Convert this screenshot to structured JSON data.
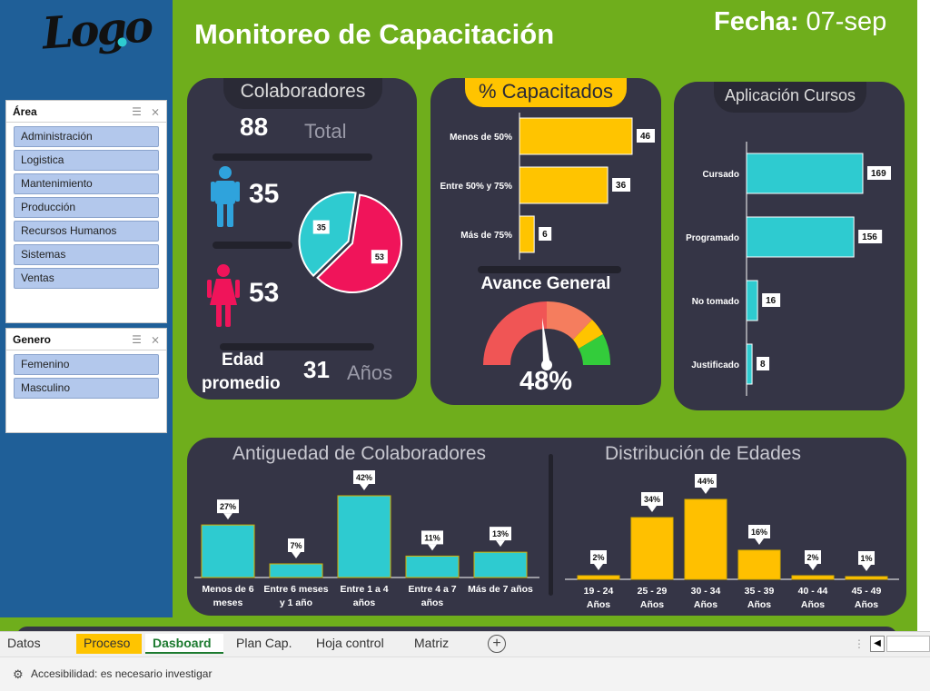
{
  "header": {
    "title": "Monitoreo de Capacitación",
    "fecha_label": "Fecha:",
    "fecha_value": "07-sep"
  },
  "sidebar": {
    "logo_text": "Logo",
    "area": {
      "title": "Área",
      "items": [
        "Administración",
        "Logistica",
        "Mantenimiento",
        "Producción",
        "Recursos Humanos",
        "Sistemas",
        "Ventas"
      ]
    },
    "genero": {
      "title": "Genero",
      "items": [
        "Femenino",
        "Masculino"
      ]
    }
  },
  "colaboradores": {
    "title": "Colaboradores",
    "total_value": "88",
    "total_label": "Total",
    "hombres": "35",
    "mujeres": "53",
    "pie": {
      "male_label": "35",
      "female_label": "53"
    },
    "edad_label_1": "Edad",
    "edad_label_2": "promedio",
    "edad_value": "31",
    "edad_unit": "Años"
  },
  "capacitados": {
    "title": "% Capacitados",
    "avance_title": "Avance General",
    "avance_value": "48%"
  },
  "aplicacion": {
    "title": "Aplicación Cursos"
  },
  "antiguedad": {
    "title": "Antiguedad de Colaboradores"
  },
  "edades": {
    "title": "Distribución de Edades"
  },
  "chart_data": [
    {
      "type": "bar",
      "title": "% Capacitados",
      "orientation": "horizontal",
      "categories": [
        "Menos de 50%",
        "Entre 50% y 75%",
        "Más de 75%"
      ],
      "values": [
        46,
        36,
        6
      ],
      "color": "#ffc400"
    },
    {
      "type": "bar",
      "title": "Aplicación Cursos",
      "orientation": "horizontal",
      "categories": [
        "Cursado",
        "Programado",
        "No tomado",
        "Justificado"
      ],
      "values": [
        169,
        156,
        16,
        8
      ],
      "color": "#2ecbd0"
    },
    {
      "type": "pie",
      "categories": [
        "Hombres",
        "Mujeres"
      ],
      "values": [
        35,
        53
      ],
      "colors": [
        "#2ecbd0",
        "#f0145a"
      ]
    },
    {
      "type": "bar",
      "title": "Antiguedad de Colaboradores",
      "categories": [
        "Menos de 6 meses",
        "Entre 6 meses y 1 año",
        "Entre 1 a 4 años",
        "Entre 4 a 7 años",
        "Más de 7 años"
      ],
      "values": [
        27,
        7,
        42,
        11,
        13
      ],
      "labels": [
        "27%",
        "7%",
        "42%",
        "11%",
        "13%"
      ],
      "color": "#2ecbd0"
    },
    {
      "type": "bar",
      "title": "Distribución de Edades",
      "categories": [
        "19 - 24 Años",
        "25 - 29 Años",
        "30 - 34 Años",
        "35 - 39 Años",
        "40 - 44 Años",
        "45 - 49 Años"
      ],
      "values": [
        2,
        34,
        44,
        16,
        2,
        1
      ],
      "labels": [
        "2%",
        "34%",
        "44%",
        "16%",
        "2%",
        "1%"
      ],
      "color": "#ffc000"
    }
  ],
  "sheet_tabs": [
    "Datos Base",
    "Proceso",
    "Dasboard",
    "Plan Cap.",
    "Hoja control",
    "Matriz"
  ],
  "status": {
    "accessibility": "Accesibilidad: es necesario investigar"
  },
  "colors": {
    "green_bg": "#6fae1c",
    "panel": "#353546",
    "accent_yellow": "#ffc400",
    "accent_cyan": "#2ecbd0",
    "female_pink": "#f0145a"
  }
}
